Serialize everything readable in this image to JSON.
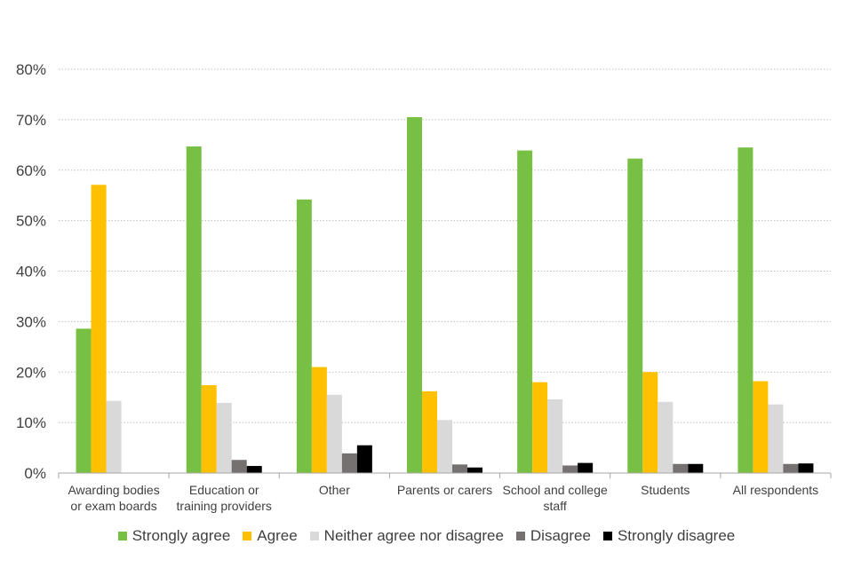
{
  "chart_data": {
    "type": "bar",
    "categories": [
      [
        "Awarding bodies",
        "or exam boards"
      ],
      [
        "Education or",
        "training providers"
      ],
      [
        "Other"
      ],
      [
        "Parents or carers"
      ],
      [
        "School and college",
        "staff"
      ],
      [
        "Students"
      ],
      [
        "All respondents"
      ]
    ],
    "series": [
      {
        "name": "Strongly agree",
        "color": "#77c043",
        "values": [
          28.6,
          64.7,
          54.2,
          70.5,
          63.9,
          62.3,
          64.5
        ]
      },
      {
        "name": "Agree",
        "color": "#ffc000",
        "values": [
          57.1,
          17.4,
          21.0,
          16.2,
          18.0,
          20.0,
          18.2
        ]
      },
      {
        "name": "Neither agree nor disagree",
        "color": "#d9d9d9",
        "values": [
          14.3,
          13.9,
          15.5,
          10.5,
          14.6,
          14.1,
          13.6
        ]
      },
      {
        "name": "Disagree",
        "color": "#767171",
        "values": [
          0,
          2.6,
          3.9,
          1.7,
          1.5,
          1.8,
          1.8
        ]
      },
      {
        "name": "Strongly disagree",
        "color": "#000000",
        "values": [
          0,
          1.4,
          5.5,
          1.1,
          2.0,
          1.8,
          1.9
        ]
      }
    ],
    "y_ticks": [
      "0%",
      "10%",
      "20%",
      "30%",
      "40%",
      "50%",
      "60%",
      "70%",
      "80%"
    ],
    "ylim": [
      0,
      80
    ],
    "grid": true,
    "legend_position": "bottom"
  }
}
